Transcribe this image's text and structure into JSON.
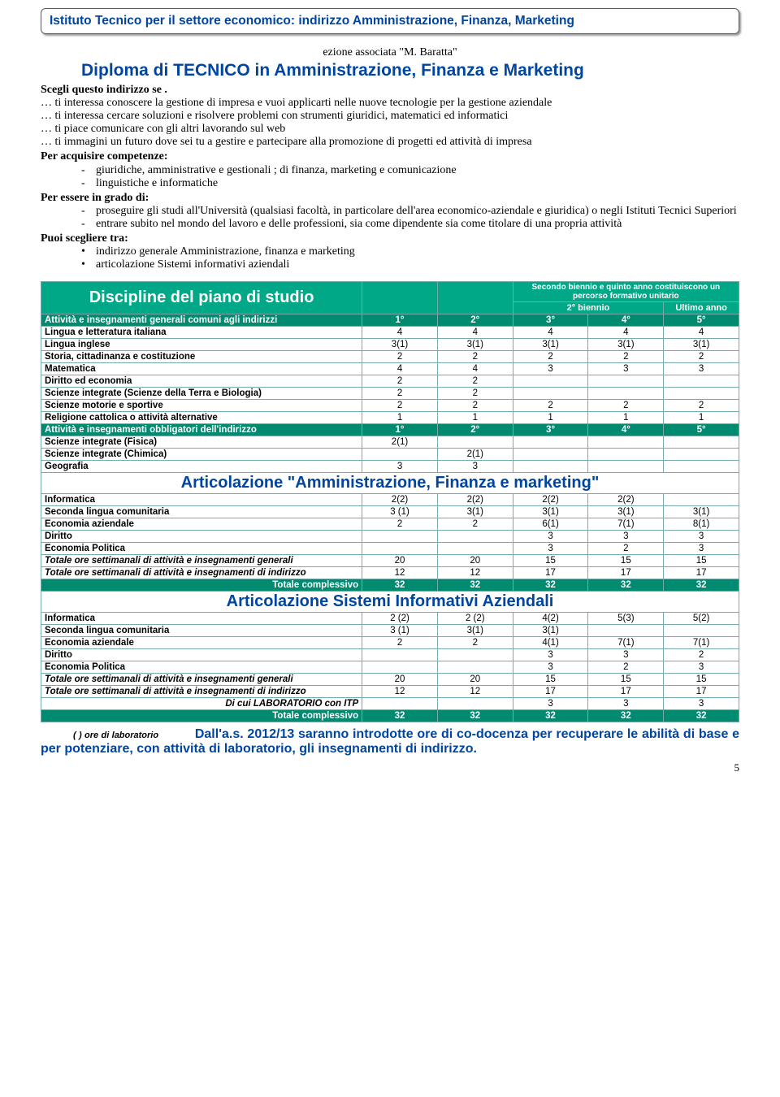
{
  "colors": {
    "blue": "#0046a0",
    "teal": "#00a887",
    "teal_dark": "#008b71",
    "border": "#7aa"
  },
  "header": {
    "title": "Istituto Tecnico per il settore economico: indirizzo Amministrazione, Finanza, Marketing"
  },
  "subtitle": "ezione associata \"M. Baratta\"",
  "diploma": "Diploma di TECNICO in Amministrazione, Finanza e Marketing",
  "lead": "Scegli questo indirizzo se .",
  "bullets1": [
    "… ti interessa conoscere la gestione di impresa e  vuoi applicarti nelle nuove tecnologie per la gestione aziendale",
    "… ti interessa cercare soluzioni e risolvere problemi con strumenti giuridici, matematici ed informatici",
    "… ti piace comunicare con gli altri lavorando sul web",
    "… ti immagini un futuro dove sei tu a gestire e partecipare alla promozione di progetti ed attività di impresa"
  ],
  "competenze_label": "Per acquisire competenze:",
  "competenze": [
    "giuridiche, amministrative e gestionali ; di finanza, marketing e comunicazione",
    "linguistiche e informatiche"
  ],
  "grado_label": "Per essere in grado di:",
  "grado": [
    "proseguire gli studi all'Università (qualsiasi facoltà, in particolare dell'area  economico-aziendale e giuridica) o negli Istituti Tecnici Superiori",
    "entrare subito nel mondo del lavoro e delle professioni, sia come dipendente sia come titolare di una propria attività"
  ],
  "scegli_label": "Puoi scegliere tra:",
  "scegli": [
    "indirizzo generale    Amministrazione, finanza e marketing",
    "articolazione   Sistemi informativi aziendali"
  ],
  "table": {
    "title": "Discipline del piano di studio",
    "col_super": "Secondo biennio e quinto anno costituiscono un percorso formativo unitario",
    "col_b": "2° biennio",
    "col_u": "Ultimo anno",
    "hdr_generali": "Attività e insegnamenti generali comuni agli indirizzi",
    "years": [
      "1°",
      "2°",
      "3°",
      "4°",
      "5°"
    ],
    "rows_generali": [
      {
        "s": "Lingua e letteratura italiana",
        "v": [
          "4",
          "4",
          "4",
          "4",
          "4"
        ]
      },
      {
        "s": "Lingua inglese",
        "v": [
          "3(1)",
          "3(1)",
          "3(1)",
          "3(1)",
          "3(1)"
        ]
      },
      {
        "s": "Storia, cittadinanza e costituzione",
        "v": [
          "2",
          "2",
          "2",
          "2",
          "2"
        ]
      },
      {
        "s": "Matematica",
        "v": [
          "4",
          "4",
          "3",
          "3",
          "3"
        ]
      },
      {
        "s": "Diritto ed economia",
        "v": [
          "2",
          "2",
          "",
          "",
          ""
        ]
      },
      {
        "s": "Scienze integrate (Scienze della Terra e Biologia)",
        "v": [
          "2",
          "2",
          "",
          "",
          ""
        ]
      },
      {
        "s": "Scienze motorie e sportive",
        "v": [
          "2",
          "2",
          "2",
          "2",
          "2"
        ]
      },
      {
        "s": "Religione cattolica o attività alternative",
        "v": [
          "1",
          "1",
          "1",
          "1",
          "1"
        ]
      }
    ],
    "hdr_indirizzo": "Attività e insegnamenti obbligatori dell'indirizzo",
    "rows_indirizzo": [
      {
        "s": "Scienze integrate (Fisica)",
        "v": [
          "2(1)",
          "",
          "",
          "",
          ""
        ]
      },
      {
        "s": "Scienze integrate (Chimica)",
        "v": [
          "",
          "2(1)",
          "",
          "",
          ""
        ]
      },
      {
        "s": "Geografia",
        "v": [
          "3",
          "3",
          "",
          "",
          ""
        ]
      }
    ],
    "section1": "Articolazione \"Amministrazione, Finanza e marketing\"",
    "rows_afm": [
      {
        "s": "Informatica",
        "v": [
          "2(2)",
          "2(2)",
          "2(2)",
          "2(2)",
          ""
        ]
      },
      {
        "s": "Seconda lingua comunitaria",
        "v": [
          "3 (1)",
          "3(1)",
          "3(1)",
          "3(1)",
          "3(1)"
        ]
      },
      {
        "s": "Economia aziendale",
        "v": [
          "2",
          "2",
          "6(1)",
          "7(1)",
          "8(1)"
        ]
      },
      {
        "s": "Diritto",
        "v": [
          "",
          "",
          "3",
          "3",
          "3"
        ]
      },
      {
        "s": "Economia Politica",
        "v": [
          "",
          "",
          "3",
          "2",
          "3"
        ]
      },
      {
        "s": "Totale ore settimanali di attività e insegnamenti generali",
        "v": [
          "20",
          "20",
          "15",
          "15",
          "15"
        ],
        "i": true
      },
      {
        "s": "Totale ore settimanali di attività e insegnamenti di indirizzo",
        "v": [
          "12",
          "12",
          "17",
          "17",
          "17"
        ],
        "i": true
      }
    ],
    "total1_label": "Totale complessivo",
    "total1": [
      "32",
      "32",
      "32",
      "32",
      "32"
    ],
    "section2": "Articolazione Sistemi Informativi Aziendali",
    "rows_sia": [
      {
        "s": "Informatica",
        "v": [
          "2 (2)",
          "2 (2)",
          "4(2)",
          "5(3)",
          "5(2)"
        ]
      },
      {
        "s": "Seconda lingua comunitaria",
        "v": [
          "3 (1)",
          "3(1)",
          "3(1)",
          "",
          ""
        ]
      },
      {
        "s": "Economia aziendale",
        "v": [
          "2",
          "2",
          "4(1)",
          "7(1)",
          "7(1)"
        ]
      },
      {
        "s": "Diritto",
        "v": [
          "",
          "",
          "3",
          "3",
          "2"
        ]
      },
      {
        "s": "Economia Politica",
        "v": [
          "",
          "",
          "3",
          "2",
          "3"
        ]
      },
      {
        "s": "Totale ore settimanali di attività e insegnamenti generali",
        "v": [
          "20",
          "20",
          "15",
          "15",
          "15"
        ],
        "i": true
      },
      {
        "s": "Totale ore settimanali di attività e insegnamenti di indirizzo",
        "v": [
          "12",
          "12",
          "17",
          "17",
          "17"
        ],
        "i": true
      },
      {
        "s": "Di cui  LABORATORIO con ITP",
        "v": [
          "",
          "",
          "3",
          "3",
          "3"
        ],
        "i": true,
        "r": true
      }
    ],
    "total2_label": "Totale complessivo",
    "total2": [
      "32",
      "32",
      "32",
      "32",
      "32"
    ]
  },
  "footnote_small": "(  ) ore  di  laboratorio",
  "footnote": "Dall'a.s. 2012/13 saranno introdotte ore di co-docenza per recuperare le abilità di base e per potenziare, con attività di laboratorio, gli insegnamenti di indirizzo.",
  "page": "5"
}
